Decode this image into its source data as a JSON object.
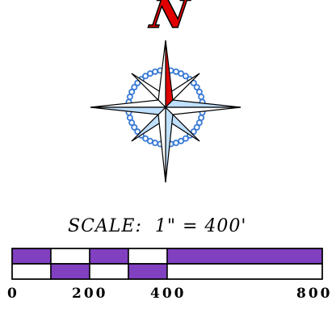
{
  "north_arrow": {
    "letter": "N",
    "letter_color": "#e00000",
    "needle_color": "#e00000",
    "point_fill": "#bfe0ff",
    "ring_color": "#3a7bd5"
  },
  "scale": {
    "label": "SCALE:  1\" = 400'",
    "ratio_text": "1\" = 400'",
    "fill_color": "#8040c0",
    "ticks": [
      "0",
      "200",
      "400",
      "800"
    ]
  }
}
